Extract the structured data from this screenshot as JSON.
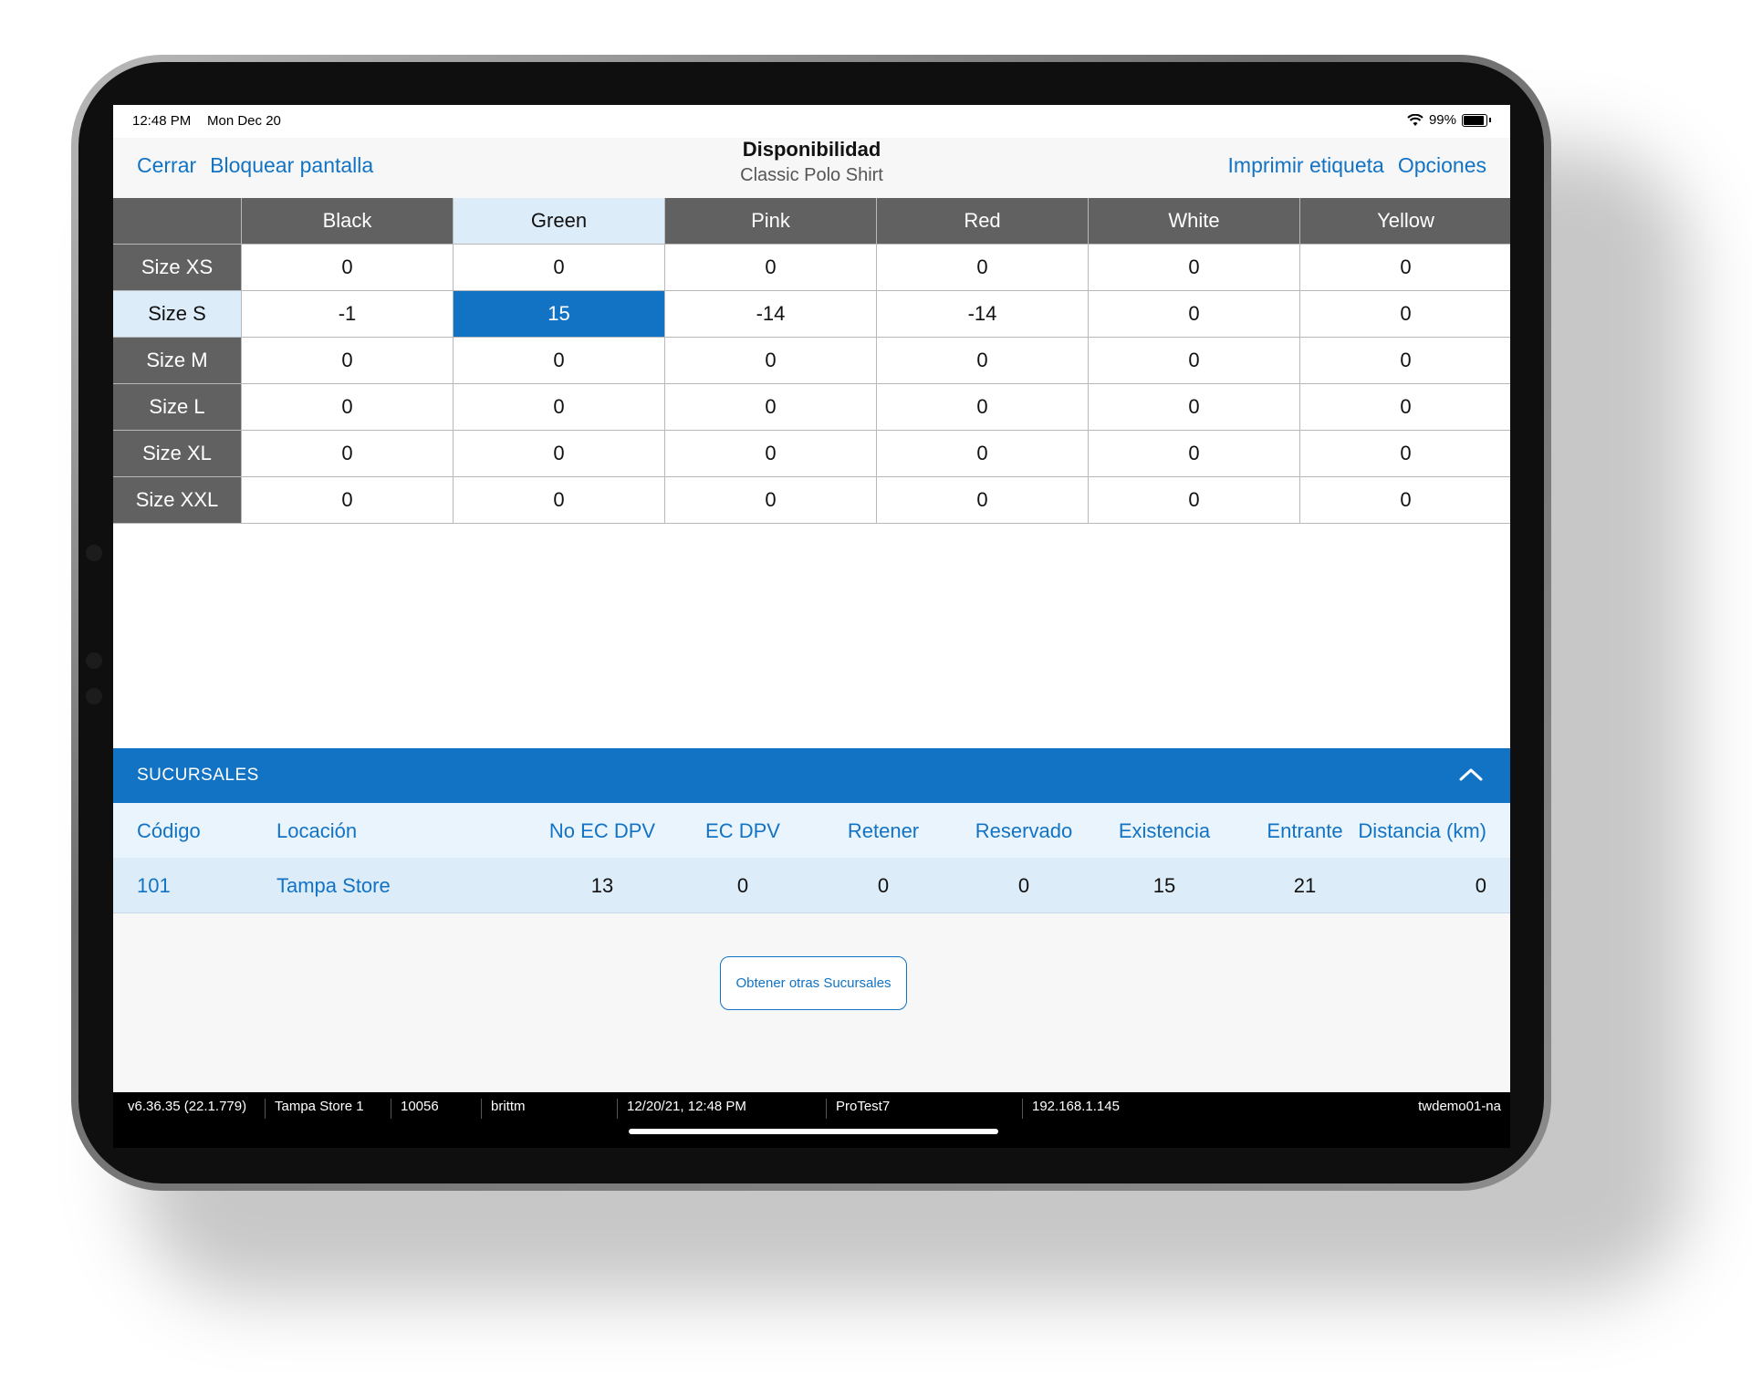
{
  "status_bar": {
    "time": "12:48 PM",
    "date": "Mon Dec 20",
    "battery": "99%",
    "wifi_icon": "wifi-icon",
    "battery_icon": "battery-icon"
  },
  "nav": {
    "close": "Cerrar",
    "lock": "Bloquear pantalla",
    "title": "Disponibilidad",
    "subtitle": "Classic Polo Shirt",
    "print": "Imprimir etiqueta",
    "options": "Opciones"
  },
  "grid": {
    "columns": [
      "Black",
      "Green",
      "Pink",
      "Red",
      "White",
      "Yellow"
    ],
    "rows": [
      {
        "label": "Size XS",
        "values": [
          "0",
          "0",
          "0",
          "0",
          "0",
          "0"
        ]
      },
      {
        "label": "Size S",
        "values": [
          "-1",
          "15",
          "-14",
          "-14",
          "0",
          "0"
        ]
      },
      {
        "label": "Size M",
        "values": [
          "0",
          "0",
          "0",
          "0",
          "0",
          "0"
        ]
      },
      {
        "label": "Size L",
        "values": [
          "0",
          "0",
          "0",
          "0",
          "0",
          "0"
        ]
      },
      {
        "label": "Size XL",
        "values": [
          "0",
          "0",
          "0",
          "0",
          "0",
          "0"
        ]
      },
      {
        "label": "Size XXL",
        "values": [
          "0",
          "0",
          "0",
          "0",
          "0",
          "0"
        ]
      }
    ],
    "selected_column": "Green",
    "selected_row": "Size S"
  },
  "branches": {
    "title": "SUCURSALES",
    "collapse_icon": "chevron-up-icon",
    "headers": [
      "Código",
      "Locación",
      "No EC DPV",
      "EC DPV",
      "Retener",
      "Reservado",
      "Existencia",
      "Entrante",
      "Distancia (km)"
    ],
    "rows": [
      {
        "codigo": "101",
        "locacion": "Tampa Store",
        "no_ec_dpv": "13",
        "ec_dpv": "0",
        "retener": "0",
        "reservado": "0",
        "existencia": "15",
        "entrante": "21",
        "distancia": "0"
      }
    ],
    "more_button": "Obtener otras Sucursales"
  },
  "footer": [
    "v6.36.35 (22.1.779)",
    "Tampa Store 1",
    "10056",
    "brittm",
    "12/20/21, 12:48 PM",
    "ProTest7",
    "192.168.1.145",
    "twdemo01-na"
  ],
  "colors": {
    "accent": "#1273c4",
    "header_gray": "#616161",
    "selected_light": "#dcecf9"
  }
}
